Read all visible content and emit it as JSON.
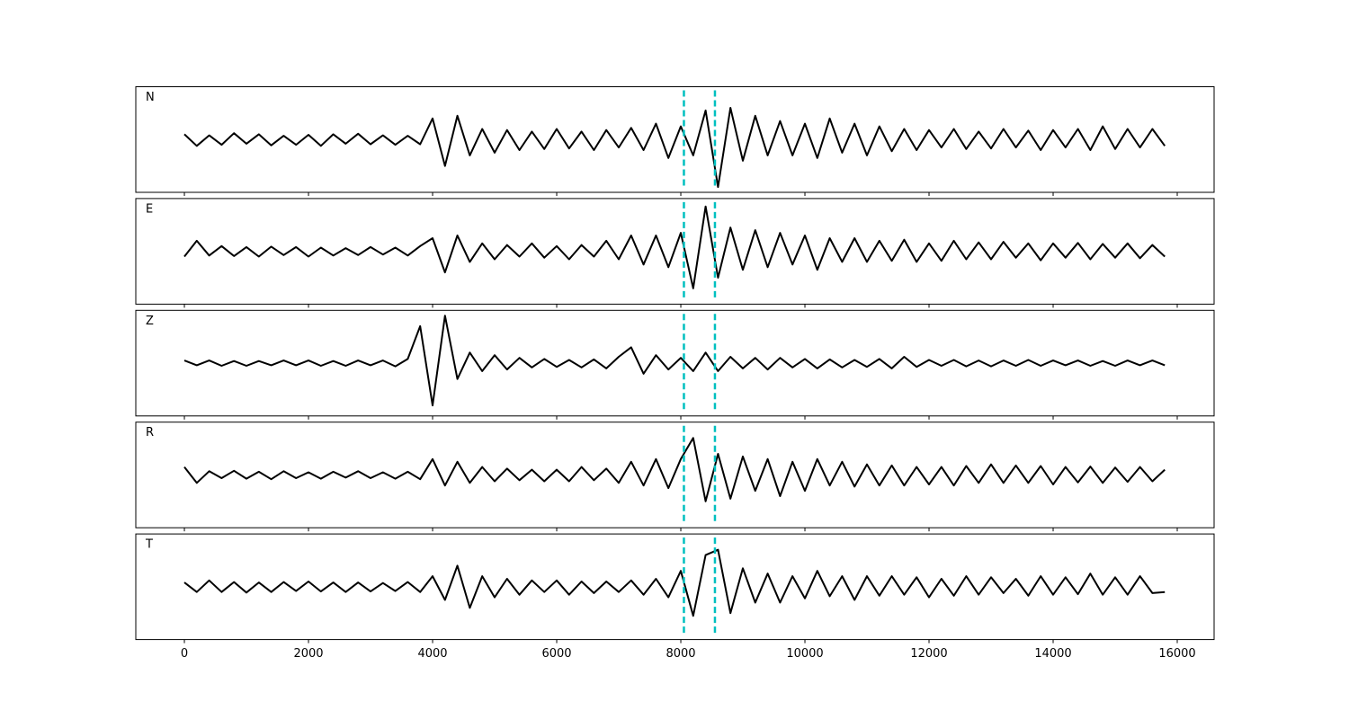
{
  "chart_data": {
    "type": "line",
    "x": [
      0,
      200,
      400,
      600,
      800,
      1000,
      1200,
      1400,
      1600,
      1800,
      2000,
      2200,
      2400,
      2600,
      2800,
      3000,
      3200,
      3400,
      3600,
      3800,
      4000,
      4200,
      4400,
      4600,
      4800,
      5000,
      5200,
      5400,
      5600,
      5800,
      6000,
      6200,
      6400,
      6600,
      6800,
      7000,
      7200,
      7400,
      7600,
      7800,
      8000,
      8200,
      8400,
      8600,
      8800,
      9000,
      9200,
      9400,
      9600,
      9800,
      10000,
      10200,
      10400,
      10600,
      10800,
      11000,
      11200,
      11400,
      11600,
      11800,
      12000,
      12200,
      12400,
      12600,
      12800,
      13000,
      13200,
      13400,
      13600,
      13800,
      14000,
      14200,
      14400,
      14600,
      14800,
      15000,
      15200,
      15400,
      15600,
      15800
    ],
    "xlim": [
      -783,
      16594
    ],
    "xticks": [
      0,
      2000,
      4000,
      6000,
      8000,
      10000,
      12000,
      14000,
      16000
    ],
    "ylim": [
      -1,
      1
    ],
    "vlines": [
      8050,
      8550
    ],
    "vline_color": "#00bfbf",
    "series": [
      {
        "name": "N",
        "color": "#000000",
        "values": [
          0.1,
          -0.12,
          0.08,
          -0.1,
          0.12,
          -0.08,
          0.1,
          -0.11,
          0.07,
          -0.1,
          0.09,
          -0.12,
          0.1,
          -0.08,
          0.11,
          -0.09,
          0.08,
          -0.1,
          0.07,
          -0.09,
          0.4,
          -0.5,
          0.45,
          -0.3,
          0.2,
          -0.25,
          0.18,
          -0.2,
          0.15,
          -0.18,
          0.2,
          -0.17,
          0.15,
          -0.2,
          0.18,
          -0.15,
          0.22,
          -0.2,
          0.3,
          -0.35,
          0.25,
          -0.3,
          0.55,
          -0.9,
          0.6,
          -0.4,
          0.45,
          -0.3,
          0.35,
          -0.3,
          0.3,
          -0.35,
          0.4,
          -0.25,
          0.3,
          -0.3,
          0.25,
          -0.22,
          0.2,
          -0.2,
          0.18,
          -0.15,
          0.2,
          -0.18,
          0.15,
          -0.17,
          0.2,
          -0.15,
          0.17,
          -0.2,
          0.18,
          -0.15,
          0.2,
          -0.2,
          0.25,
          -0.18,
          0.2,
          -0.15,
          0.2,
          -0.12
        ]
      },
      {
        "name": "E",
        "color": "#000000",
        "values": [
          -0.1,
          0.2,
          -0.08,
          0.1,
          -0.09,
          0.08,
          -0.1,
          0.09,
          -0.07,
          0.08,
          -0.1,
          0.07,
          -0.08,
          0.06,
          -0.07,
          0.08,
          -0.06,
          0.07,
          -0.08,
          0.1,
          0.25,
          -0.4,
          0.3,
          -0.2,
          0.15,
          -0.15,
          0.12,
          -0.1,
          0.15,
          -0.12,
          0.1,
          -0.15,
          0.12,
          -0.1,
          0.2,
          -0.15,
          0.3,
          -0.25,
          0.3,
          -0.3,
          0.35,
          -0.7,
          0.85,
          -0.5,
          0.45,
          -0.35,
          0.4,
          -0.3,
          0.35,
          -0.25,
          0.3,
          -0.35,
          0.25,
          -0.2,
          0.25,
          -0.2,
          0.2,
          -0.18,
          0.22,
          -0.2,
          0.15,
          -0.18,
          0.2,
          -0.15,
          0.17,
          -0.15,
          0.18,
          -0.12,
          0.15,
          -0.17,
          0.15,
          -0.12,
          0.16,
          -0.15,
          0.14,
          -0.12,
          0.15,
          -0.13,
          0.12,
          -0.1
        ]
      },
      {
        "name": "Z",
        "color": "#000000",
        "values": [
          0.05,
          -0.04,
          0.05,
          -0.05,
          0.04,
          -0.05,
          0.04,
          -0.04,
          0.05,
          -0.04,
          0.05,
          -0.05,
          0.04,
          -0.05,
          0.05,
          -0.04,
          0.05,
          -0.06,
          0.08,
          0.7,
          -0.8,
          0.9,
          -0.3,
          0.2,
          -0.15,
          0.15,
          -0.12,
          0.1,
          -0.08,
          0.08,
          -0.07,
          0.06,
          -0.08,
          0.07,
          -0.1,
          0.12,
          0.3,
          -0.2,
          0.15,
          -0.12,
          0.1,
          -0.15,
          0.2,
          -0.15,
          0.12,
          -0.1,
          0.1,
          -0.12,
          0.1,
          -0.08,
          0.08,
          -0.1,
          0.07,
          -0.08,
          0.06,
          -0.07,
          0.08,
          -0.1,
          0.12,
          -0.07,
          0.06,
          -0.05,
          0.06,
          -0.06,
          0.05,
          -0.06,
          0.05,
          -0.05,
          0.06,
          -0.05,
          0.05,
          -0.04,
          0.05,
          -0.05,
          0.04,
          -0.05,
          0.05,
          -0.04,
          0.05,
          -0.04
        ]
      },
      {
        "name": "R",
        "color": "#000000",
        "values": [
          0.15,
          -0.15,
          0.07,
          -0.06,
          0.08,
          -0.07,
          0.06,
          -0.08,
          0.07,
          -0.06,
          0.05,
          -0.07,
          0.06,
          -0.05,
          0.07,
          -0.06,
          0.05,
          -0.07,
          0.06,
          -0.08,
          0.3,
          -0.2,
          0.25,
          -0.15,
          0.15,
          -0.12,
          0.12,
          -0.1,
          0.1,
          -0.12,
          0.1,
          -0.12,
          0.15,
          -0.1,
          0.12,
          -0.15,
          0.25,
          -0.2,
          0.3,
          -0.25,
          0.3,
          0.7,
          -0.5,
          0.4,
          -0.45,
          0.35,
          -0.3,
          0.3,
          -0.4,
          0.25,
          -0.3,
          0.3,
          -0.2,
          0.25,
          -0.22,
          0.2,
          -0.2,
          0.18,
          -0.2,
          0.15,
          -0.18,
          0.15,
          -0.2,
          0.17,
          -0.15,
          0.2,
          -0.15,
          0.18,
          -0.15,
          0.17,
          -0.18,
          0.15,
          -0.14,
          0.16,
          -0.15,
          0.14,
          -0.13,
          0.15,
          -0.12,
          0.1
        ]
      },
      {
        "name": "T",
        "color": "#000000",
        "values": [
          0.08,
          -0.1,
          0.12,
          -0.1,
          0.09,
          -0.11,
          0.08,
          -0.1,
          0.09,
          -0.08,
          0.1,
          -0.09,
          0.08,
          -0.1,
          0.08,
          -0.09,
          0.07,
          -0.08,
          0.09,
          -0.1,
          0.2,
          -0.25,
          0.4,
          -0.4,
          0.2,
          -0.2,
          0.15,
          -0.15,
          0.12,
          -0.1,
          0.12,
          -0.15,
          0.1,
          -0.12,
          0.1,
          -0.1,
          0.12,
          -0.15,
          0.15,
          -0.2,
          0.3,
          -0.55,
          0.6,
          0.7,
          -0.5,
          0.35,
          -0.3,
          0.25,
          -0.3,
          0.2,
          -0.22,
          0.3,
          -0.18,
          0.2,
          -0.25,
          0.2,
          -0.17,
          0.2,
          -0.15,
          0.18,
          -0.2,
          0.15,
          -0.17,
          0.2,
          -0.15,
          0.18,
          -0.12,
          0.15,
          -0.17,
          0.2,
          -0.15,
          0.18,
          -0.14,
          0.25,
          -0.15,
          0.18,
          -0.15,
          0.2,
          -0.12,
          -0.1
        ]
      }
    ]
  }
}
